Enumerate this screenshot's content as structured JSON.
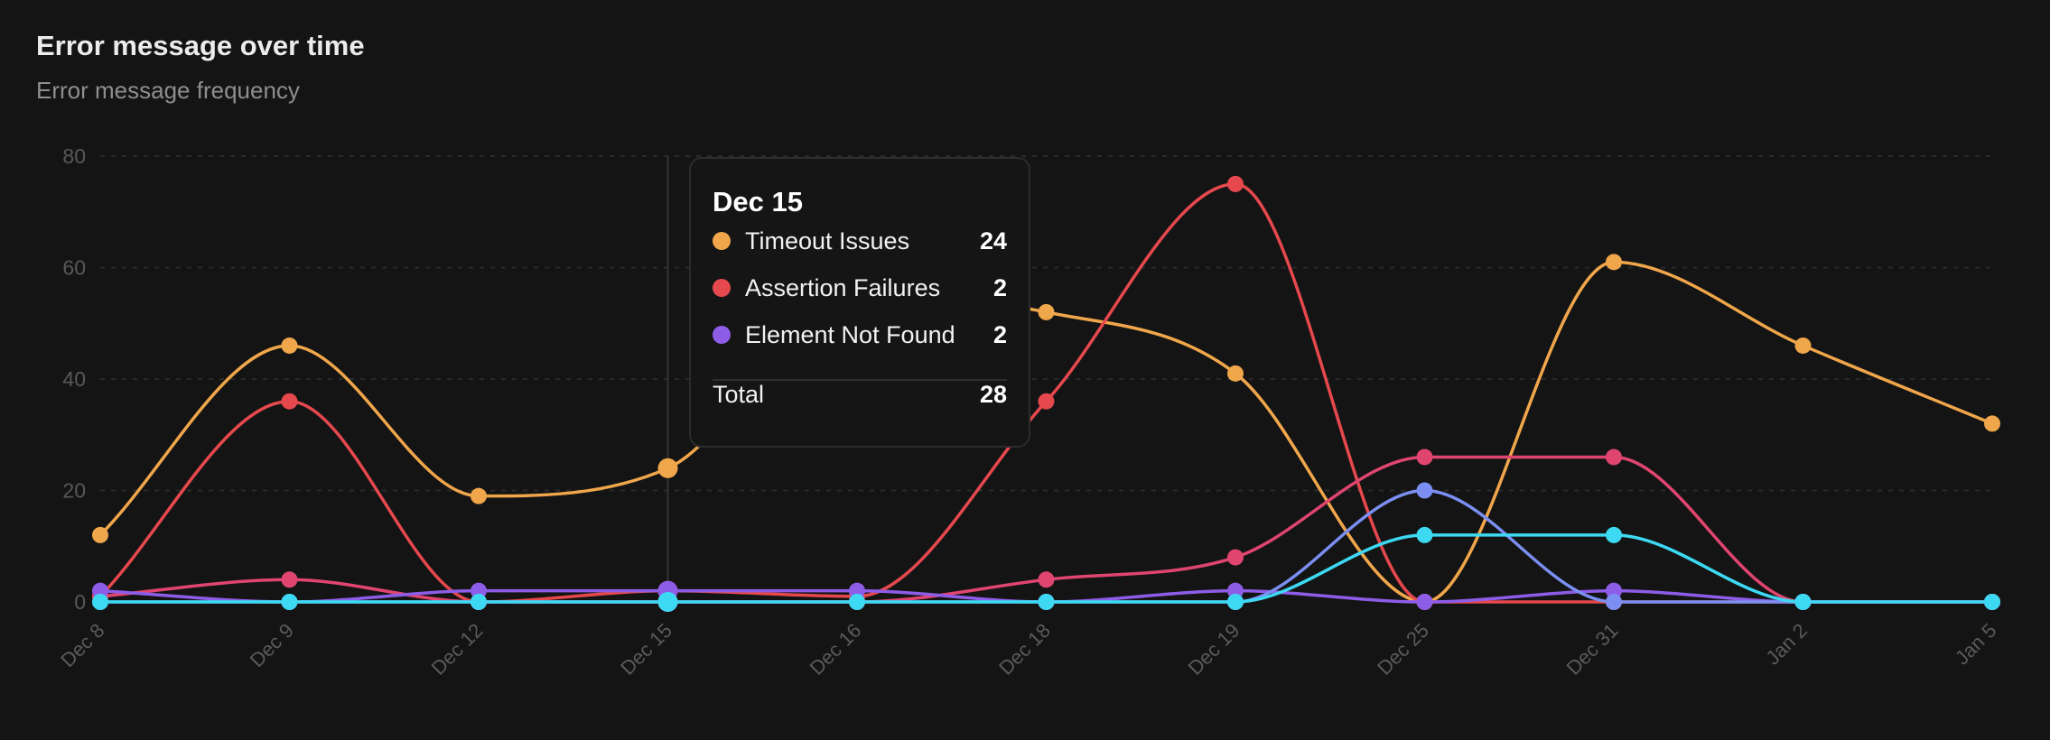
{
  "header": {
    "title": "Error message over time",
    "subtitle": "Error message frequency"
  },
  "chart_data": {
    "type": "line",
    "title": "Error message over time",
    "subtitle": "Error message frequency",
    "x": [
      "Dec 8",
      "Dec 9",
      "Dec 12",
      "Dec 15",
      "Dec 16",
      "Dec 18",
      "Dec 19",
      "Dec 25",
      "Dec 31",
      "Jan 2",
      "Jan 5"
    ],
    "ylim": [
      0,
      80
    ],
    "yticks": [
      0,
      20,
      40,
      60,
      80
    ],
    "grid": true,
    "series": [
      {
        "name": "Timeout Issues",
        "color": "#f0a64b",
        "values": [
          12,
          46,
          19,
          24,
          55,
          52,
          41,
          0,
          61,
          46,
          32
        ]
      },
      {
        "name": "Assertion Failures",
        "color": "#e5484d",
        "values": [
          1,
          36,
          0,
          2,
          1,
          36,
          75,
          0,
          0,
          0,
          0
        ]
      },
      {
        "name": "",
        "color": "#e0456f",
        "values": [
          1,
          4,
          0,
          0,
          0,
          4,
          8,
          26,
          26,
          0,
          0
        ]
      },
      {
        "name": "Element Not Found",
        "color": "#8e5de8",
        "values": [
          2,
          0,
          2,
          2,
          2,
          0,
          2,
          0,
          2,
          0,
          0
        ]
      },
      {
        "name": "",
        "color": "#7b8ff2",
        "values": [
          0,
          0,
          0,
          0,
          0,
          0,
          0,
          20,
          0,
          0,
          0
        ]
      },
      {
        "name": "",
        "color": "#3dd9f2",
        "values": [
          0,
          0,
          0,
          0,
          0,
          0,
          0,
          12,
          12,
          0,
          0
        ]
      }
    ],
    "active_index": 3
  },
  "tooltip": {
    "title": "Dec 15",
    "rows": [
      {
        "label": "Timeout Issues",
        "value": "24",
        "color": "#f0a64b"
      },
      {
        "label": "Assertion Failures",
        "value": "2",
        "color": "#e5484d"
      },
      {
        "label": "Element Not Found",
        "value": "2",
        "color": "#8e5de8"
      }
    ],
    "total_label": "Total",
    "total_value": "28"
  }
}
